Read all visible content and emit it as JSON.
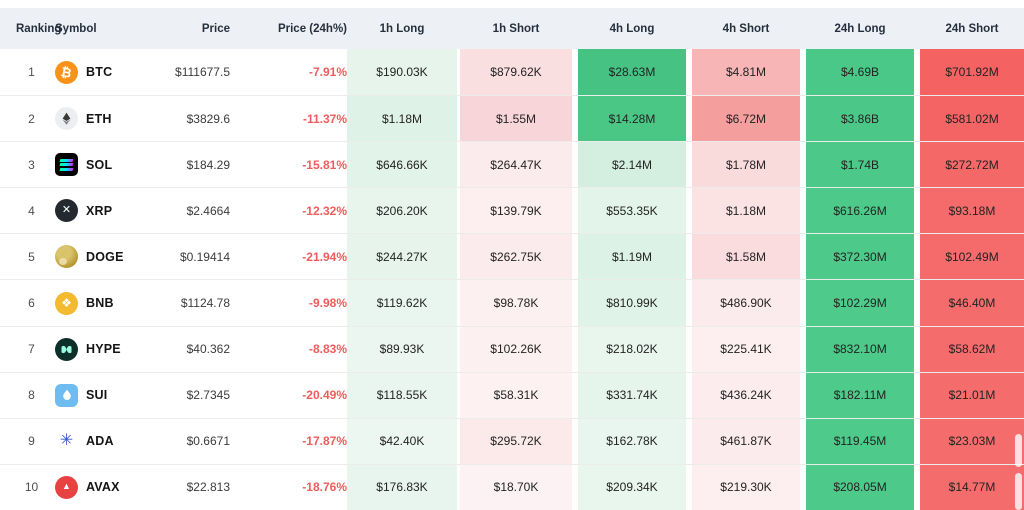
{
  "header": {
    "columns": [
      "Ranking",
      "Symbol",
      "Price",
      "Price (24h%)",
      "1h Long",
      "1h Short",
      "4h Long",
      "4h Short",
      "24h Long",
      "24h Short"
    ]
  },
  "colors": {
    "header_bg": "#edf0f4",
    "row_separator": "#ececec",
    "pct_negative": "#f15b5b",
    "long_strong": "#46c383",
    "short_strong": "#f56565"
  },
  "icons": [
    "btc-icon",
    "eth-icon",
    "sol-icon",
    "xrp-icon",
    "doge-icon",
    "bnb-icon",
    "hype-icon",
    "sui-icon",
    "ada-icon",
    "avax-icon"
  ],
  "table": {
    "rows": [
      {
        "ranking": "1",
        "symbol": "BTC",
        "icon": "btc-icon",
        "price": "$111677.5",
        "change_24h": "-7.91%",
        "h1_long": {
          "v": "$190.03K",
          "bg": "#e6f4ec"
        },
        "h1_short": {
          "v": "$879.62K",
          "bg": "#fadfe1"
        },
        "h4_long": {
          "v": "$28.63M",
          "bg": "#46c383"
        },
        "h4_short": {
          "v": "$4.81M",
          "bg": "#f7b5b5"
        },
        "h24_long": {
          "v": "$4.69B",
          "bg": "#49c887"
        },
        "h24_short": {
          "v": "$701.92M",
          "bg": "#f56262"
        }
      },
      {
        "ranking": "2",
        "symbol": "ETH",
        "icon": "eth-icon",
        "price": "$3829.6",
        "change_24h": "-11.37%",
        "h1_long": {
          "v": "$1.18M",
          "bg": "#dff2e8"
        },
        "h1_short": {
          "v": "$1.55M",
          "bg": "#f8d5d8"
        },
        "h4_long": {
          "v": "$14.28M",
          "bg": "#4ac785"
        },
        "h4_short": {
          "v": "$6.72M",
          "bg": "#f59e9e"
        },
        "h24_long": {
          "v": "$3.86B",
          "bg": "#4bc887"
        },
        "h24_short": {
          "v": "$581.02M",
          "bg": "#f56464"
        }
      },
      {
        "ranking": "3",
        "symbol": "SOL",
        "icon": "sol-icon",
        "price": "$184.29",
        "change_24h": "-15.81%",
        "h1_long": {
          "v": "$646.66K",
          "bg": "#e2f3e9"
        },
        "h1_short": {
          "v": "$264.47K",
          "bg": "#fcebec"
        },
        "h4_long": {
          "v": "$2.14M",
          "bg": "#d4efe0"
        },
        "h4_short": {
          "v": "$1.78M",
          "bg": "#fadbdc"
        },
        "h24_long": {
          "v": "$1.74B",
          "bg": "#4cc988"
        },
        "h24_short": {
          "v": "$272.72M",
          "bg": "#f56868"
        }
      },
      {
        "ranking": "4",
        "symbol": "XRP",
        "icon": "xrp-icon",
        "price": "$2.4664",
        "change_24h": "-12.32%",
        "h1_long": {
          "v": "$206.20K",
          "bg": "#e7f5ed"
        },
        "h1_short": {
          "v": "$139.79K",
          "bg": "#fdeff0"
        },
        "h4_long": {
          "v": "$553.35K",
          "bg": "#e3f4ea"
        },
        "h4_short": {
          "v": "$1.18M",
          "bg": "#fbe2e3"
        },
        "h24_long": {
          "v": "$616.26M",
          "bg": "#4dc989"
        },
        "h24_short": {
          "v": "$93.18M",
          "bg": "#f56b6b"
        }
      },
      {
        "ranking": "5",
        "symbol": "DOGE",
        "icon": "doge-icon",
        "price": "$0.19414",
        "change_24h": "-21.94%",
        "h1_long": {
          "v": "$244.27K",
          "bg": "#e6f4ec"
        },
        "h1_short": {
          "v": "$262.75K",
          "bg": "#fcebec"
        },
        "h4_long": {
          "v": "$1.19M",
          "bg": "#ddf2e7"
        },
        "h4_short": {
          "v": "$1.58M",
          "bg": "#fadcde"
        },
        "h24_long": {
          "v": "$372.30M",
          "bg": "#4dc989"
        },
        "h24_short": {
          "v": "$102.49M",
          "bg": "#f56b6b"
        }
      },
      {
        "ranking": "6",
        "symbol": "BNB",
        "icon": "bnb-icon",
        "price": "$1124.78",
        "change_24h": "-9.98%",
        "h1_long": {
          "v": "$119.62K",
          "bg": "#e9f6ef"
        },
        "h1_short": {
          "v": "$98.78K",
          "bg": "#fdf0f1"
        },
        "h4_long": {
          "v": "$810.99K",
          "bg": "#e0f3e8"
        },
        "h4_short": {
          "v": "$486.90K",
          "bg": "#fcebed"
        },
        "h24_long": {
          "v": "$102.29M",
          "bg": "#4eca8a"
        },
        "h24_short": {
          "v": "$46.40M",
          "bg": "#f56c6c"
        }
      },
      {
        "ranking": "7",
        "symbol": "HYPE",
        "icon": "hype-icon",
        "price": "$40.362",
        "change_24h": "-8.83%",
        "h1_long": {
          "v": "$89.93K",
          "bg": "#eaf6ef"
        },
        "h1_short": {
          "v": "$102.26K",
          "bg": "#fdf0f1"
        },
        "h4_long": {
          "v": "$218.02K",
          "bg": "#e8f6ee"
        },
        "h4_short": {
          "v": "$225.41K",
          "bg": "#fdeff0"
        },
        "h24_long": {
          "v": "$832.10M",
          "bg": "#4dc989"
        },
        "h24_short": {
          "v": "$58.62M",
          "bg": "#f56c6c"
        }
      },
      {
        "ranking": "8",
        "symbol": "SUI",
        "icon": "sui-icon",
        "price": "$2.7345",
        "change_24h": "-20.49%",
        "h1_long": {
          "v": "$118.55K",
          "bg": "#e9f6ef"
        },
        "h1_short": {
          "v": "$58.31K",
          "bg": "#fdf1f2"
        },
        "h4_long": {
          "v": "$331.74K",
          "bg": "#e6f5ec"
        },
        "h4_short": {
          "v": "$436.24K",
          "bg": "#fcecee"
        },
        "h24_long": {
          "v": "$182.11M",
          "bg": "#4eca8a"
        },
        "h24_short": {
          "v": "$21.01M",
          "bg": "#f56c6c"
        }
      },
      {
        "ranking": "9",
        "symbol": "ADA",
        "icon": "ada-icon",
        "price": "$0.6671",
        "change_24h": "-17.87%",
        "h1_long": {
          "v": "$42.40K",
          "bg": "#ebf7f0"
        },
        "h1_short": {
          "v": "$295.72K",
          "bg": "#fceaeb"
        },
        "h4_long": {
          "v": "$162.78K",
          "bg": "#e9f6ef"
        },
        "h4_short": {
          "v": "$461.87K",
          "bg": "#fcebed"
        },
        "h24_long": {
          "v": "$119.45M",
          "bg": "#4eca8a"
        },
        "h24_short": {
          "v": "$23.03M",
          "bg": "#f56c6c"
        }
      },
      {
        "ranking": "10",
        "symbol": "AVAX",
        "icon": "avax-icon",
        "price": "$22.813",
        "change_24h": "-18.76%",
        "h1_long": {
          "v": "$176.83K",
          "bg": "#e8f5ee"
        },
        "h1_short": {
          "v": "$18.70K",
          "bg": "#fdf2f3"
        },
        "h4_long": {
          "v": "$209.34K",
          "bg": "#e8f6ee"
        },
        "h4_short": {
          "v": "$219.30K",
          "bg": "#fdeff0"
        },
        "h24_long": {
          "v": "$208.05M",
          "bg": "#4dc989"
        },
        "h24_short": {
          "v": "$14.77M",
          "bg": "#f56c6c"
        }
      }
    ]
  }
}
